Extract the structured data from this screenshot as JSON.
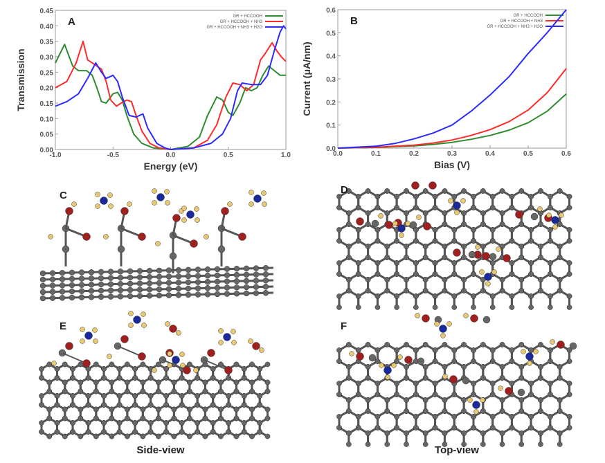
{
  "chart_data": [
    {
      "id": "A",
      "type": "line",
      "panel_label": "A",
      "xlabel": "Energy (eV)",
      "ylabel": "Transmission",
      "xlim": [
        -1,
        1
      ],
      "ylim": [
        0,
        0.45
      ],
      "xticks": [
        "-1.0",
        "-0.5",
        "0.0",
        "0.5",
        "1.0"
      ],
      "yticks": [
        "0.00",
        "0.05",
        "0.10",
        "0.15",
        "0.20",
        "0.25",
        "0.30",
        "0.35",
        "0.40",
        "0.45"
      ],
      "legend_position": "top-right",
      "series": [
        {
          "name": "GR + HCCOOH",
          "color": "#2e8b2e",
          "x": [
            -1,
            -0.92,
            -0.85,
            -0.8,
            -0.73,
            -0.68,
            -0.64,
            -0.6,
            -0.56,
            -0.5,
            -0.46,
            -0.42,
            -0.38,
            -0.32,
            -0.25,
            -0.15,
            0,
            0.15,
            0.25,
            0.32,
            0.4,
            0.45,
            0.5,
            0.54,
            0.6,
            0.65,
            0.7,
            0.75,
            0.8,
            0.85,
            0.9,
            0.95,
            1
          ],
          "y": [
            0.28,
            0.34,
            0.27,
            0.255,
            0.255,
            0.24,
            0.2,
            0.155,
            0.15,
            0.18,
            0.185,
            0.16,
            0.11,
            0.05,
            0.02,
            0.005,
            0,
            0.01,
            0.04,
            0.11,
            0.17,
            0.16,
            0.12,
            0.11,
            0.15,
            0.2,
            0.19,
            0.2,
            0.24,
            0.27,
            0.255,
            0.24,
            0.24
          ]
        },
        {
          "name": "GR + HCCOOH + NH3",
          "color": "#ff2a2a",
          "x": [
            -1,
            -0.9,
            -0.82,
            -0.76,
            -0.72,
            -0.68,
            -0.6,
            -0.56,
            -0.52,
            -0.47,
            -0.43,
            -0.38,
            -0.34,
            -0.3,
            -0.25,
            -0.18,
            -0.1,
            0,
            0.2,
            0.32,
            0.4,
            0.48,
            0.54,
            0.6,
            0.66,
            0.72,
            0.78,
            0.82,
            0.88,
            0.92,
            0.96,
            1
          ],
          "y": [
            0.2,
            0.22,
            0.28,
            0.35,
            0.29,
            0.28,
            0.26,
            0.22,
            0.16,
            0.14,
            0.15,
            0.16,
            0.155,
            0.11,
            0.06,
            0.02,
            0.005,
            0,
            0.005,
            0.03,
            0.08,
            0.17,
            0.215,
            0.21,
            0.19,
            0.21,
            0.29,
            0.31,
            0.345,
            0.32,
            0.3,
            0.285
          ]
        },
        {
          "name": "GR + HCCOOH + NH3 + H2O",
          "color": "#2a2aff",
          "x": [
            -1,
            -0.9,
            -0.8,
            -0.72,
            -0.65,
            -0.6,
            -0.56,
            -0.5,
            -0.46,
            -0.42,
            -0.36,
            -0.3,
            -0.24,
            -0.2,
            -0.12,
            -0.05,
            0,
            0.2,
            0.35,
            0.45,
            0.52,
            0.58,
            0.62,
            0.7,
            0.78,
            0.84,
            0.9,
            0.95,
            0.98,
            1
          ],
          "y": [
            0.14,
            0.155,
            0.18,
            0.23,
            0.28,
            0.25,
            0.23,
            0.24,
            0.22,
            0.17,
            0.11,
            0.105,
            0.115,
            0.07,
            0.02,
            0.005,
            0,
            0.005,
            0.02,
            0.05,
            0.1,
            0.19,
            0.215,
            0.21,
            0.21,
            0.24,
            0.32,
            0.38,
            0.4,
            0.39
          ]
        }
      ]
    },
    {
      "id": "B",
      "type": "line",
      "panel_label": "B",
      "xlabel": "Bias (V)",
      "ylabel": "Current (μA/nm)",
      "xlim": [
        0,
        0.6
      ],
      "ylim": [
        0,
        0.6
      ],
      "xticks": [
        "0.0",
        "0.1",
        "0.2",
        "0.3",
        "0.4",
        "0.5",
        "0.6"
      ],
      "yticks": [
        "0.0",
        "0.1",
        "0.2",
        "0.3",
        "0.4",
        "0.5",
        "0.6"
      ],
      "legend_position": "top-right",
      "series": [
        {
          "name": "GR + HCCOOH",
          "color": "#2e8b2e",
          "x": [
            0,
            0.1,
            0.2,
            0.25,
            0.3,
            0.35,
            0.4,
            0.45,
            0.5,
            0.55,
            0.6
          ],
          "y": [
            0,
            0.003,
            0.01,
            0.016,
            0.025,
            0.038,
            0.055,
            0.078,
            0.11,
            0.16,
            0.235
          ]
        },
        {
          "name": "GR + HCCOOH + NH3",
          "color": "#ff2a2a",
          "x": [
            0,
            0.1,
            0.2,
            0.25,
            0.3,
            0.35,
            0.4,
            0.45,
            0.5,
            0.55,
            0.6
          ],
          "y": [
            0,
            0.004,
            0.013,
            0.022,
            0.035,
            0.055,
            0.08,
            0.115,
            0.165,
            0.24,
            0.345
          ]
        },
        {
          "name": "GR + HCCOOH + NH3 + H2O",
          "color": "#2a2aff",
          "x": [
            0,
            0.1,
            0.15,
            0.2,
            0.25,
            0.3,
            0.35,
            0.4,
            0.45,
            0.5,
            0.55,
            0.6
          ],
          "y": [
            0,
            0.008,
            0.02,
            0.04,
            0.065,
            0.1,
            0.16,
            0.23,
            0.31,
            0.41,
            0.5,
            0.6
          ]
        }
      ]
    }
  ],
  "panels": {
    "C": "C",
    "D": "D",
    "E": "E",
    "F": "F"
  },
  "captions": {
    "side": "Side-view",
    "top": "Top-view"
  },
  "atom_colors": {
    "carbon": "#666666",
    "oxygen": "#a02020",
    "nitrogen": "#1a2a9a",
    "hydrogen": "#e8c870"
  }
}
